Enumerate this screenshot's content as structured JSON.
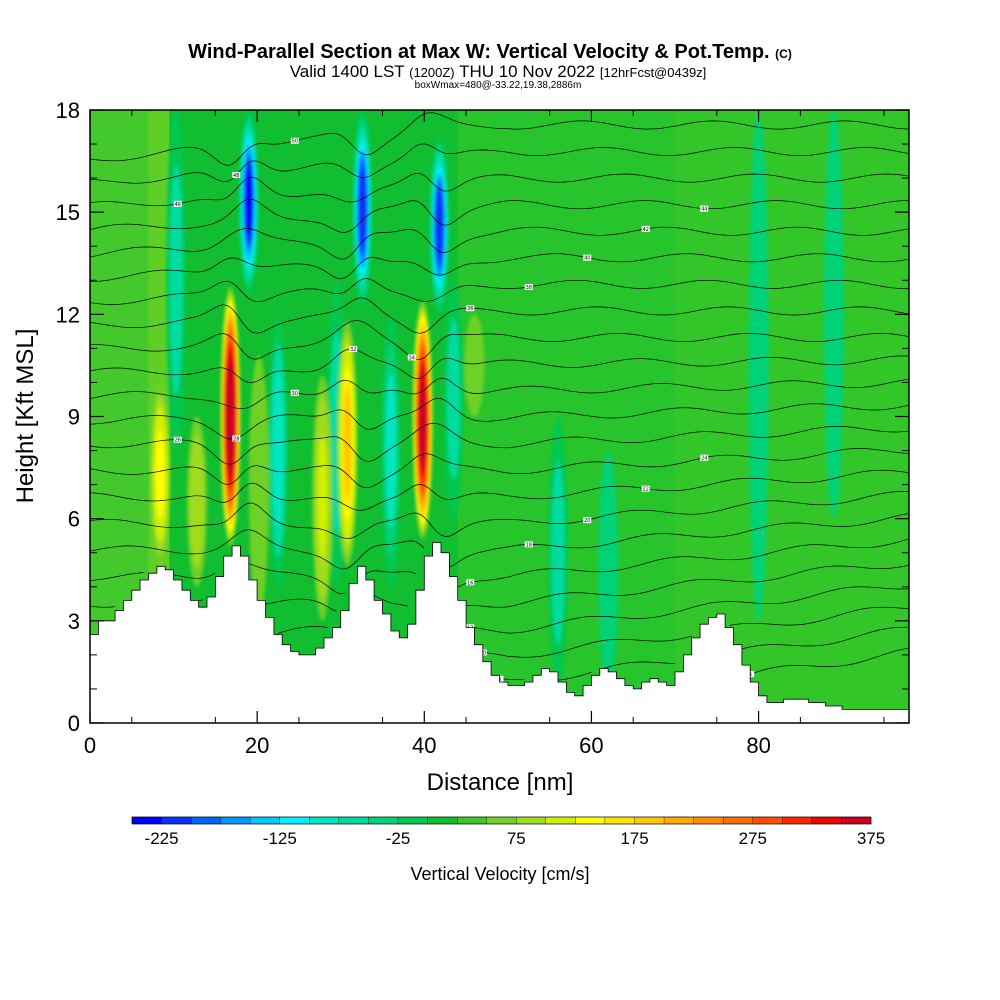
{
  "chart_data": {
    "type": "heatmap",
    "title": "Wind-Parallel Section at Max W: Vertical Velocity & Pot.Temp.",
    "title_suffix": "(C)",
    "subtitle_parts": [
      "Valid 1400 LST",
      "(1200Z)",
      "THU 10 Nov 2022",
      "[12hrFcst@0439z]"
    ],
    "subtitle2": "boxWmax=480@-33.22,19.38,2886m",
    "xlabel": "Distance [nm]",
    "ylabel": "Height [Kft MSL]",
    "xlim": [
      0,
      98
    ],
    "ylim": [
      0,
      18
    ],
    "x_ticks": [
      0,
      20,
      40,
      60,
      80
    ],
    "y_ticks": [
      0,
      3,
      6,
      9,
      12,
      15,
      18
    ],
    "colorbar": {
      "label": "Vertical Velocity [cm/s]",
      "min": -250,
      "max": 450,
      "step": 25,
      "tick_labels": [
        -225,
        -125,
        -25,
        75,
        175,
        275,
        375
      ],
      "colors": [
        "#0000ff",
        "#0a32ff",
        "#0064ff",
        "#0096ff",
        "#00c8ff",
        "#00f0ff",
        "#00e6c0",
        "#00dca0",
        "#00d278",
        "#00c850",
        "#10be30",
        "#3cc828",
        "#6ed228",
        "#a0dc1e",
        "#d2f000",
        "#ffff00",
        "#ffe600",
        "#ffc800",
        "#ffaa00",
        "#ff8c00",
        "#ff6e00",
        "#ff5000",
        "#ff2800",
        "#ee0000",
        "#cc0022"
      ]
    },
    "terrain": {
      "x": [
        0,
        1,
        2,
        3,
        4,
        5,
        6,
        7,
        8,
        9,
        10,
        11,
        12,
        13,
        14,
        15,
        16,
        17,
        18,
        19,
        20,
        21,
        22,
        23,
        24,
        25,
        26,
        27,
        28,
        29,
        30,
        31,
        32,
        33,
        34,
        35,
        36,
        37,
        38,
        39,
        40,
        41,
        42,
        43,
        44,
        45,
        46,
        47,
        48,
        49,
        50,
        51,
        52,
        53,
        54,
        55,
        56,
        57,
        58,
        59,
        60,
        61,
        62,
        63,
        64,
        65,
        66,
        67,
        68,
        69,
        70,
        71,
        72,
        73,
        74,
        75,
        76,
        77,
        78,
        79,
        80,
        81,
        82,
        83,
        84,
        85,
        86,
        87,
        88,
        89,
        90,
        91,
        92,
        93,
        94,
        95,
        96,
        97,
        98
      ],
      "height": [
        2.6,
        3.0,
        3.0,
        3.3,
        3.6,
        3.9,
        4.2,
        4.4,
        4.6,
        4.5,
        4.2,
        3.9,
        3.6,
        3.4,
        3.7,
        4.3,
        4.9,
        5.2,
        4.9,
        4.2,
        3.6,
        3.1,
        2.6,
        2.3,
        2.1,
        2.0,
        2.0,
        2.2,
        2.5,
        2.8,
        3.3,
        4.1,
        4.6,
        4.2,
        3.6,
        3.2,
        2.7,
        2.5,
        2.9,
        3.9,
        4.9,
        5.3,
        5.0,
        4.3,
        3.6,
        2.8,
        2.3,
        1.8,
        1.4,
        1.2,
        1.1,
        1.1,
        1.2,
        1.4,
        1.6,
        1.5,
        1.2,
        0.9,
        0.8,
        1.1,
        1.4,
        1.6,
        1.5,
        1.3,
        1.1,
        1.0,
        1.2,
        1.3,
        1.2,
        1.1,
        1.5,
        2.0,
        2.5,
        2.9,
        3.1,
        3.2,
        2.8,
        2.3,
        1.7,
        1.2,
        0.8,
        0.6,
        0.6,
        0.7,
        0.7,
        0.7,
        0.6,
        0.6,
        0.5,
        0.5,
        0.4,
        0.4,
        0.4,
        0.4,
        0.4,
        0.4,
        0.4,
        0.4,
        0.4
      ]
    },
    "updraft_cores": [
      {
        "x": 16.8,
        "height_min": 5.2,
        "height_max": 12.8,
        "peak_w": 430
      },
      {
        "x": 39.8,
        "height_min": 5.4,
        "height_max": 12.4,
        "peak_w": 390
      },
      {
        "x": 30.8,
        "height_min": 4.6,
        "height_max": 11.8,
        "peak_w": 180
      },
      {
        "x": 8.4,
        "height_min": 4.6,
        "height_max": 10.0,
        "peak_w": 140
      },
      {
        "x": 12.8,
        "height_min": 4.0,
        "height_max": 9.0,
        "peak_w": 90
      },
      {
        "x": 27.8,
        "height_min": 3.0,
        "height_max": 10.2,
        "peak_w": 110
      },
      {
        "x": 20.2,
        "height_min": 3.2,
        "height_max": 10.8,
        "peak_w": 70
      },
      {
        "x": 46.0,
        "height_min": 9.0,
        "height_max": 12.0,
        "peak_w": 60
      }
    ],
    "downdraft_cores": [
      {
        "x": 19.0,
        "height_min": 12.6,
        "height_max": 18.0,
        "peak_w": -230
      },
      {
        "x": 32.6,
        "height_min": 12.2,
        "height_max": 18.0,
        "peak_w": -215
      },
      {
        "x": 41.8,
        "height_min": 12.0,
        "height_max": 17.2,
        "peak_w": -210
      },
      {
        "x": 10.3,
        "height_min": 8.0,
        "height_max": 18.0,
        "peak_w": -70
      },
      {
        "x": 22.5,
        "height_min": 4.0,
        "height_max": 12.0,
        "peak_w": -90
      },
      {
        "x": 29.5,
        "height_min": 4.0,
        "height_max": 13.0,
        "peak_w": -70
      },
      {
        "x": 36.0,
        "height_min": 4.0,
        "height_max": 12.0,
        "peak_w": -80
      },
      {
        "x": 43.5,
        "height_min": 6.0,
        "height_max": 13.0,
        "peak_w": -60
      },
      {
        "x": 56.0,
        "height_min": 1.0,
        "height_max": 9.0,
        "peak_w": -60
      },
      {
        "x": 62.0,
        "height_min": 1.0,
        "height_max": 8.0,
        "peak_w": -45
      },
      {
        "x": 80.0,
        "height_min": 3.0,
        "height_max": 18.0,
        "peak_w": -40
      },
      {
        "x": 89.0,
        "height_min": 6.0,
        "height_max": 18.0,
        "peak_w": -35
      }
    ],
    "theta_contours": {
      "levels": [
        6,
        8,
        10,
        12,
        14,
        16,
        18,
        20,
        22,
        24,
        26,
        28,
        30,
        32,
        34,
        36,
        38,
        40,
        42,
        44,
        46,
        48,
        50
      ]
    }
  }
}
